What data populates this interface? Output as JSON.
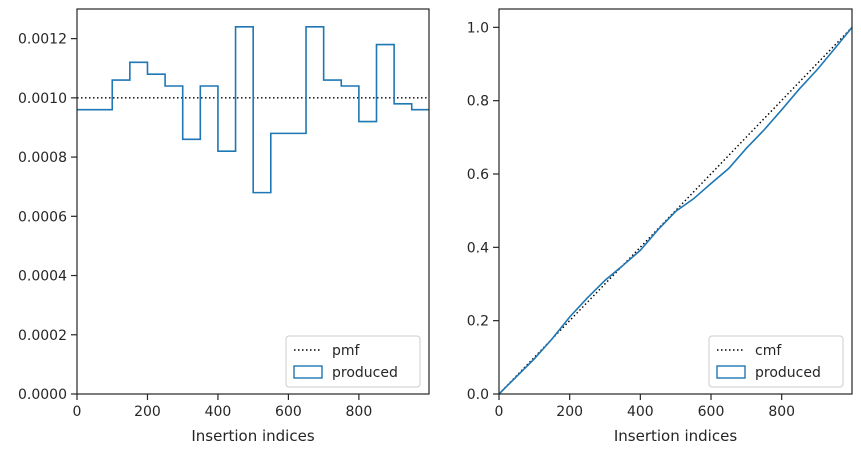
{
  "chart_data": [
    {
      "type": "step",
      "xlabel": "Insertion indices",
      "ylabel": "",
      "xlim": [
        0,
        999
      ],
      "ylim": [
        0,
        0.0013
      ],
      "xticks": [
        0,
        200,
        400,
        600,
        800
      ],
      "xtick_labels": [
        "0",
        "200",
        "400",
        "600",
        "800"
      ],
      "yticks": [
        0,
        0.0002,
        0.0004,
        0.0006,
        0.0008,
        0.001,
        0.0012
      ],
      "ytick_labels": [
        "0.0000",
        "0.0002",
        "0.0004",
        "0.0006",
        "0.0008",
        "0.0010",
        "0.0012"
      ],
      "grid": false,
      "legend": {
        "position": "lower-right",
        "entries": [
          "pmf",
          "produced"
        ]
      },
      "reference_line": {
        "name": "pmf",
        "style": "dotted",
        "color": "#000000",
        "y": 0.001
      },
      "series": [
        {
          "name": "produced",
          "color": "#1f77b4",
          "bin_edges": [
            0,
            100,
            150,
            200,
            250,
            300,
            350,
            400,
            450,
            500,
            550,
            650,
            700,
            750,
            800,
            850,
            900,
            950,
            999
          ],
          "values": [
            0.00096,
            0.00106,
            0.00112,
            0.00108,
            0.00104,
            0.00086,
            0.00104,
            0.00082,
            0.00124,
            0.00068,
            0.00088,
            0.00124,
            0.00106,
            0.00104,
            0.00092,
            0.00118,
            0.00098,
            0.00096
          ]
        }
      ]
    },
    {
      "type": "line",
      "xlabel": "Insertion indices",
      "ylabel": "",
      "xlim": [
        0,
        999
      ],
      "ylim": [
        0,
        1.05
      ],
      "xticks": [
        0,
        200,
        400,
        600,
        800
      ],
      "xtick_labels": [
        "0",
        "200",
        "400",
        "600",
        "800"
      ],
      "yticks": [
        0,
        0.2,
        0.4,
        0.6,
        0.8,
        1.0
      ],
      "ytick_labels": [
        "0.0",
        "0.2",
        "0.4",
        "0.6",
        "0.8",
        "1.0"
      ],
      "grid": false,
      "legend": {
        "position": "lower-right",
        "entries": [
          "cmf",
          "produced"
        ]
      },
      "reference_line": {
        "name": "cmf",
        "style": "dotted",
        "color": "#000000",
        "x": [
          0,
          999
        ],
        "y": [
          0,
          1.0
        ]
      },
      "series": [
        {
          "name": "produced",
          "color": "#1f77b4",
          "x": [
            0,
            50,
            100,
            150,
            200,
            250,
            300,
            350,
            400,
            450,
            500,
            550,
            600,
            650,
            700,
            750,
            800,
            850,
            900,
            950,
            999
          ],
          "y": [
            0,
            0.048,
            0.096,
            0.15,
            0.21,
            0.262,
            0.31,
            0.35,
            0.392,
            0.448,
            0.498,
            0.532,
            0.574,
            0.615,
            0.67,
            0.72,
            0.775,
            0.832,
            0.884,
            0.942,
            1.0
          ]
        }
      ]
    }
  ]
}
